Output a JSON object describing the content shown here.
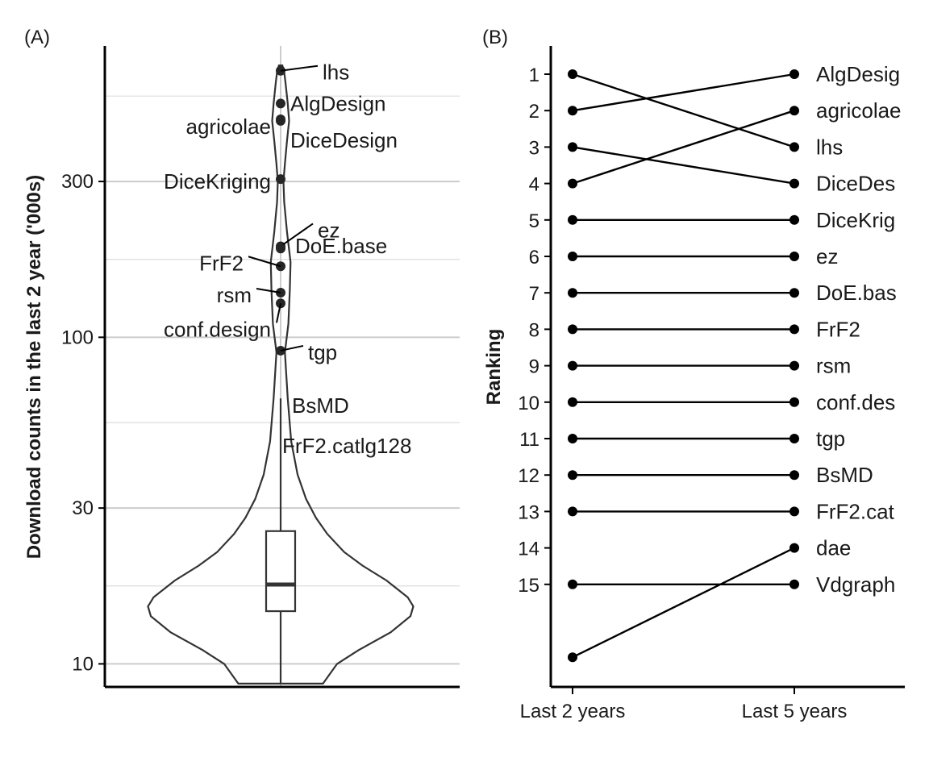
{
  "panels": {
    "a_tag": "(A)",
    "b_tag": "(B)"
  },
  "chart_data": [
    {
      "type": "violin",
      "panel": "(A)",
      "title": "",
      "xlabel": "",
      "ylabel": "Download counts in the last 2 year ('000s)",
      "y_scale": "log10",
      "ylim": [
        8.5,
        780
      ],
      "y_ticks": [
        10,
        30,
        100,
        300
      ],
      "grid": true,
      "box": {
        "lower_whisker": 8.7,
        "q1": 14.5,
        "median": 17.5,
        "q3": 25.5,
        "upper_whisker": 65
      },
      "points": [
        {
          "label": "lhs",
          "value": 655
        },
        {
          "label": "AlgDesign",
          "value": 520
        },
        {
          "label": "agricolae",
          "value": 465
        },
        {
          "label": "DiceDesign",
          "value": 460
        },
        {
          "label": "DiceKriging",
          "value": 305
        },
        {
          "label": "ez",
          "value": 190
        },
        {
          "label": "DoE.base",
          "value": 187
        },
        {
          "label": "FrF2",
          "value": 165
        },
        {
          "label": "rsm",
          "value": 137
        },
        {
          "label": "conf.design",
          "value": 127
        },
        {
          "label": "tgp",
          "value": 91
        },
        {
          "label": "BsMD",
          "value": 65
        },
        {
          "label": "FrF2.catlg128",
          "value": 65
        }
      ],
      "density_profile": [
        [
          8.7,
          0.3
        ],
        [
          10,
          0.4
        ],
        [
          11,
          0.55
        ],
        [
          12.5,
          0.78
        ],
        [
          14,
          0.92
        ],
        [
          15,
          0.94
        ],
        [
          16,
          0.9
        ],
        [
          18,
          0.75
        ],
        [
          20,
          0.58
        ],
        [
          22,
          0.45
        ],
        [
          25,
          0.33
        ],
        [
          28,
          0.25
        ],
        [
          32,
          0.18
        ],
        [
          38,
          0.12
        ],
        [
          48,
          0.075
        ],
        [
          65,
          0.05
        ],
        [
          90,
          0.03
        ],
        [
          110,
          0.055
        ],
        [
          140,
          0.065
        ],
        [
          170,
          0.07
        ],
        [
          210,
          0.045
        ],
        [
          260,
          0.025
        ],
        [
          300,
          0.02
        ],
        [
          340,
          0.03
        ],
        [
          400,
          0.045
        ],
        [
          460,
          0.06
        ],
        [
          520,
          0.05
        ],
        [
          600,
          0.035
        ],
        [
          650,
          0.025
        ],
        [
          680,
          0.012
        ]
      ]
    },
    {
      "type": "slope",
      "panel": "(B)",
      "title": "",
      "xlabel": "",
      "ylabel": "Ranking",
      "categories": [
        "Last 2 years",
        "Last 5 years"
      ],
      "y_ticks": [
        1,
        2,
        3,
        4,
        5,
        6,
        7,
        8,
        9,
        10,
        11,
        12,
        13,
        14,
        15
      ],
      "y_reversed": true,
      "ylim": [
        0.5,
        17.8
      ],
      "right_labels": [
        "AlgDesig",
        "agricolae",
        "lhs",
        "DiceDes",
        "DiceKrig",
        "ez",
        "DoE.bas",
        "FrF2",
        "rsm",
        "conf.des",
        "tgp",
        "BsMD",
        "FrF2.cat",
        "dae",
        "Vdgraph"
      ],
      "lines": [
        {
          "from": 1,
          "to": 3
        },
        {
          "from": 2,
          "to": 1
        },
        {
          "from": 3,
          "to": 4
        },
        {
          "from": 4,
          "to": 2
        },
        {
          "from": 5,
          "to": 5
        },
        {
          "from": 6,
          "to": 6
        },
        {
          "from": 7,
          "to": 7
        },
        {
          "from": 8,
          "to": 8
        },
        {
          "from": 9,
          "to": 9
        },
        {
          "from": 10,
          "to": 10
        },
        {
          "from": 11,
          "to": 11
        },
        {
          "from": 12,
          "to": 12
        },
        {
          "from": 13,
          "to": 13
        },
        {
          "from": 15,
          "to": 15
        },
        {
          "from": 17,
          "to": 14
        }
      ]
    }
  ]
}
